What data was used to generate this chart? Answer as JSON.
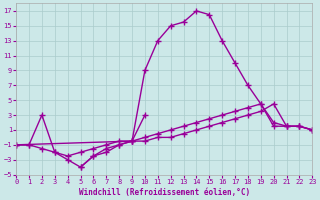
{
  "xlabel": "Windchill (Refroidissement éolien,°C)",
  "background_color": "#cce8e8",
  "grid_color": "#aacccc",
  "line_color": "#990099",
  "xlim": [
    0,
    23
  ],
  "ylim": [
    -5,
    18
  ],
  "xticks": [
    0,
    1,
    2,
    3,
    4,
    5,
    6,
    7,
    8,
    9,
    10,
    11,
    12,
    13,
    14,
    15,
    16,
    17,
    18,
    19,
    20,
    21,
    22,
    23
  ],
  "yticks": [
    -5,
    -3,
    -1,
    1,
    3,
    5,
    7,
    9,
    11,
    13,
    15,
    17
  ],
  "series": [
    {
      "x": [
        0,
        1,
        2,
        3,
        4,
        5,
        6,
        7,
        8,
        9,
        10,
        11,
        12,
        13,
        14,
        15,
        16,
        17,
        18,
        19,
        20,
        21,
        22,
        23
      ],
      "y": [
        -1,
        -1,
        3,
        -2,
        -3,
        -4,
        -2.5,
        -1.5,
        -1,
        -0.5,
        9,
        13,
        15,
        15.5,
        17,
        16.5,
        13,
        10,
        7,
        4.5,
        2,
        1.5,
        1.5,
        1
      ]
    },
    {
      "x": [
        0,
        1,
        2,
        3,
        4,
        5,
        6,
        7,
        8,
        9,
        10,
        11,
        12,
        13,
        14,
        15,
        16,
        17,
        18,
        19,
        20,
        21,
        22,
        23
      ],
      "y": [
        -1,
        -1,
        -1.5,
        -2,
        -2.5,
        -2,
        -1.5,
        -1,
        -0.5,
        -0.5,
        0,
        0.5,
        1,
        1.5,
        2,
        2.5,
        3,
        3.5,
        4,
        4.5,
        1.5,
        1.5,
        1.5,
        1
      ]
    },
    {
      "x": [
        0,
        9,
        10,
        11,
        12,
        13,
        14,
        15,
        16,
        17,
        18,
        19,
        20,
        21,
        22,
        23
      ],
      "y": [
        -1,
        -0.5,
        -0.5,
        0,
        0,
        0.5,
        1,
        1.5,
        2,
        2.5,
        3,
        3.5,
        4.5,
        1.5,
        1.5,
        1
      ]
    },
    {
      "x": [
        5,
        6,
        7,
        8,
        9,
        10
      ],
      "y": [
        -4,
        -2.5,
        -2,
        -1,
        -0.5,
        3
      ]
    }
  ],
  "marker": "+",
  "markersize": 4,
  "linewidth": 1.0,
  "markeredgewidth": 1.0,
  "fontsize_ticks": 5,
  "fontsize_xlabel": 5.5
}
